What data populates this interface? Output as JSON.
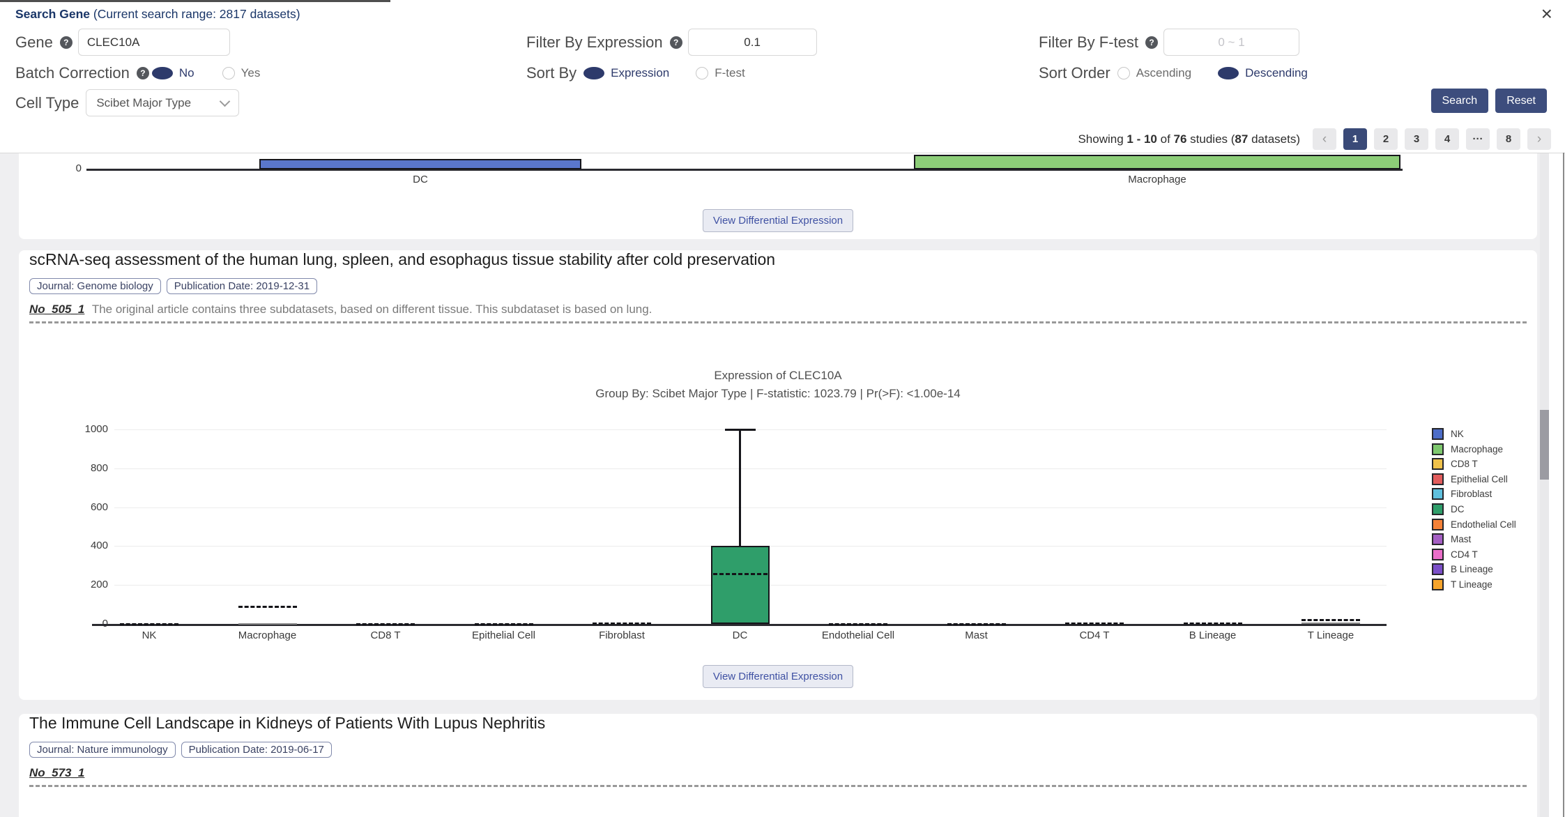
{
  "header": {
    "title": "Search Gene",
    "range_note": "(Current search range: 2817 datasets)",
    "close": "×",
    "form": {
      "gene_label": "Gene",
      "gene_value": "CLEC10A",
      "batch_label": "Batch Correction",
      "batch_options": [
        "No",
        "Yes"
      ],
      "batch_selected": "No",
      "cell_type_label": "Cell Type",
      "cell_type_value": "Scibet Major Type",
      "filter_expr_label": "Filter By Expression",
      "filter_expr_value": "0.1",
      "sort_by_label": "Sort By",
      "sort_by_options": [
        "Expression",
        "F-test"
      ],
      "sort_by_selected": "Expression",
      "filter_ftest_label": "Filter By F-test",
      "filter_ftest_placeholder": "0 ~ 1",
      "sort_order_label": "Sort Order",
      "sort_order_options": [
        "Ascending",
        "Descending"
      ],
      "sort_order_selected": "Descending",
      "search_label": "Search",
      "reset_label": "Reset"
    },
    "pagination": {
      "summary_parts": [
        {
          "t": "Showing ",
          "b": false
        },
        {
          "t": "1 - 10",
          "b": true
        },
        {
          "t": " of ",
          "b": false
        },
        {
          "t": "76",
          "b": true
        },
        {
          "t": " studies (",
          "b": false
        },
        {
          "t": "87",
          "b": true
        },
        {
          "t": " datasets)",
          "b": false
        }
      ],
      "items": [
        {
          "label": "‹",
          "kind": "prev"
        },
        {
          "label": "1",
          "active": true
        },
        {
          "label": "2"
        },
        {
          "label": "3"
        },
        {
          "label": "4"
        },
        {
          "label": "···",
          "kind": "ellipsis"
        },
        {
          "label": "8"
        },
        {
          "label": "›",
          "kind": "next"
        }
      ]
    }
  },
  "cards": [
    {
      "type": "chart-partial",
      "chart": {
        "zero_tick": "0",
        "boxes": [
          {
            "label": "DC",
            "color": "#5a77cc"
          },
          {
            "label": "Macrophage",
            "color": "#8ccd78"
          }
        ]
      },
      "button_label": "View Differential Expression"
    },
    {
      "type": "study",
      "title": "scRNA-seq assessment of the human lung, spleen, and esophagus tissue stability after cold preservation",
      "badges": [
        "Journal: Genome biology",
        "Publication Date: 2019-12-31"
      ],
      "dataset_id": "No_505_1",
      "description": "The original article contains three subdatasets, based on different tissue. This subdataset is based on lung.",
      "button_label": "View Differential Expression",
      "chart_data": {
        "type": "box",
        "title": "Expression of CLEC10A",
        "subtitle": "Group By: Scibet Major Type | F-statistic: 1023.79 | Pr(>F): <1.00e-14",
        "ylim": [
          0,
          1000
        ],
        "yticks": [
          0,
          200,
          400,
          600,
          800,
          1000
        ],
        "categories": [
          "NK",
          "Macrophage",
          "CD8 T",
          "Epithelial Cell",
          "Fibroblast",
          "DC",
          "Endothelial Cell",
          "Mast",
          "CD4 T",
          "B Lineage",
          "T Lineage"
        ],
        "boxes": [
          {
            "category": "NK",
            "median": 2
          },
          {
            "category": "Macrophage",
            "median": 93,
            "box_line": 2
          },
          {
            "category": "CD8 T",
            "median": 4
          },
          {
            "category": "Epithelial Cell",
            "median": 4
          },
          {
            "category": "Fibroblast",
            "median": 7
          },
          {
            "category": "DC",
            "q1": 0,
            "median": 260,
            "q3": 400,
            "whisker_high": 1000,
            "color": "#2f9e6a"
          },
          {
            "category": "Endothelial Cell",
            "median": 5
          },
          {
            "category": "Mast",
            "median": 3
          },
          {
            "category": "CD4 T",
            "median": 6
          },
          {
            "category": "B Lineage",
            "median": 8
          },
          {
            "category": "T Lineage",
            "median": 24,
            "box_line": 6
          }
        ],
        "legend": [
          {
            "label": "NK",
            "color": "#4d6dc8"
          },
          {
            "label": "Macrophage",
            "color": "#7ec86e"
          },
          {
            "label": "CD8 T",
            "color": "#f0c24b"
          },
          {
            "label": "Epithelial Cell",
            "color": "#e25c5c"
          },
          {
            "label": "Fibroblast",
            "color": "#5fc0de"
          },
          {
            "label": "DC",
            "color": "#2f9e6a"
          },
          {
            "label": "Endothelial Cell",
            "color": "#f58238"
          },
          {
            "label": "Mast",
            "color": "#a55fc4"
          },
          {
            "label": "CD4 T",
            "color": "#ea6ec9"
          },
          {
            "label": "B Lineage",
            "color": "#7b4fc8"
          },
          {
            "label": "T Lineage",
            "color": "#f6a42b"
          }
        ]
      }
    },
    {
      "type": "study",
      "title": "The Immune Cell Landscape in Kidneys of Patients With Lupus Nephritis",
      "badges": [
        "Journal: Nature immunology",
        "Publication Date: 2019-06-17"
      ],
      "dataset_id": "No_573_1"
    }
  ]
}
